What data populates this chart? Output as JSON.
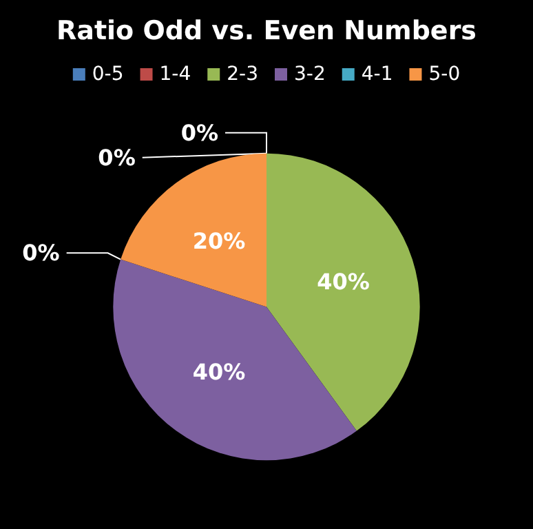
{
  "chart_data": {
    "type": "pie",
    "title": "Ratio Odd vs. Even Numbers",
    "categories": [
      "0-5",
      "1-4",
      "2-3",
      "3-2",
      "4-1",
      "5-0"
    ],
    "values": [
      0,
      0,
      40,
      40,
      0,
      20
    ],
    "colors": [
      "#4a7ebb",
      "#be4b48",
      "#98b954",
      "#7d60a0",
      "#46aac5",
      "#f79646"
    ],
    "value_labels": [
      "0%",
      "0%",
      "40%",
      "40%",
      "0%",
      "20%"
    ],
    "legend": "top"
  }
}
